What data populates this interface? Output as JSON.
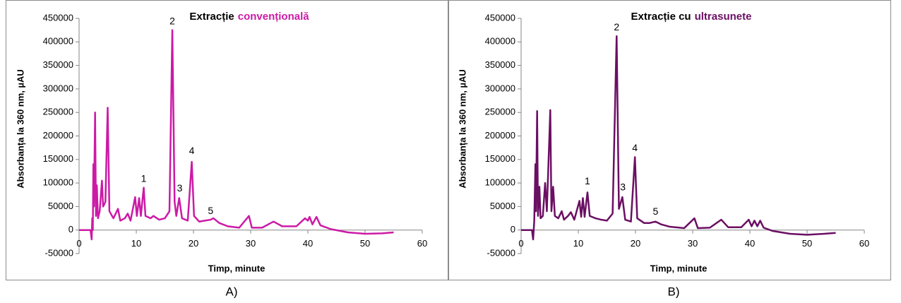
{
  "chart_data": [
    {
      "type": "line",
      "caption": "A)",
      "title_parts": [
        {
          "text": "Extracție",
          "color": "#000000"
        },
        {
          "text": "convențională",
          "color": "#cc1aa6"
        }
      ],
      "xlabel": "Timp, minute",
      "ylabel": "Absorbanța la 360 nm, µAU",
      "color": "#cc1aa6",
      "x": [
        0,
        2.0,
        2.2,
        2.3,
        2.4,
        2.5,
        2.6,
        2.8,
        2.95,
        3.1,
        3.3,
        3.6,
        4.0,
        4.2,
        4.6,
        5.0,
        5.3,
        6.0,
        6.8,
        7.2,
        8.0,
        8.5,
        9.0,
        9.8,
        10.1,
        10.5,
        10.8,
        11.3,
        11.6,
        12.5,
        13.0,
        14.0,
        15.0,
        15.8,
        16.3,
        16.7,
        17.0,
        17.5,
        18.0,
        19.0,
        19.7,
        20.1,
        21,
        22,
        23,
        23.5,
        24.5,
        26,
        28,
        29.7,
        30.2,
        32,
        34,
        35.5,
        38,
        39.5,
        40,
        40.3,
        40.8,
        41.5,
        42.2,
        44,
        47,
        50,
        53,
        55
      ],
      "values": [
        0,
        0,
        -20000,
        25000,
        0,
        140000,
        50000,
        250000,
        30000,
        95000,
        25000,
        40000,
        105000,
        50000,
        60000,
        260000,
        40000,
        25000,
        45000,
        20000,
        25000,
        35000,
        20000,
        70000,
        30000,
        68000,
        30000,
        90000,
        30000,
        25000,
        30000,
        22000,
        25000,
        40000,
        425000,
        60000,
        30000,
        68000,
        25000,
        20000,
        145000,
        30000,
        18000,
        20000,
        22000,
        25000,
        15000,
        8000,
        5000,
        30000,
        5000,
        5000,
        18000,
        8000,
        8000,
        25000,
        20000,
        28000,
        12000,
        28000,
        10000,
        2000,
        -5000,
        -8000,
        -7000,
        -5000
      ],
      "xlim": [
        0,
        60
      ],
      "xticks": [
        0,
        10,
        20,
        30,
        40,
        50,
        60
      ],
      "ylim": [
        -50000,
        450000
      ],
      "yticks": [
        -50000,
        0,
        50000,
        100000,
        150000,
        200000,
        250000,
        300000,
        350000,
        400000,
        450000
      ],
      "annotations": [
        {
          "text": "1",
          "x": 11.3,
          "y": 108000
        },
        {
          "text": "2",
          "x": 16.3,
          "y": 443000
        },
        {
          "text": "3",
          "x": 17.6,
          "y": 88000
        },
        {
          "text": "4",
          "x": 19.7,
          "y": 167000
        },
        {
          "text": "5",
          "x": 23,
          "y": 40000
        }
      ]
    },
    {
      "type": "line",
      "caption": "B)",
      "title_parts": [
        {
          "text": "Extracție cu",
          "color": "#000000"
        },
        {
          "text": "ultrasunete",
          "color": "#6b0f63"
        }
      ],
      "xlabel": "Timp, minute",
      "ylabel": "Absorbanța la 360 nm, µAU",
      "color": "#6b0f63",
      "x": [
        0,
        1.9,
        2.1,
        2.3,
        2.5,
        2.6,
        2.8,
        2.95,
        3.2,
        3.4,
        3.8,
        4.2,
        4.5,
        5.1,
        5.3,
        5.6,
        5.9,
        6.5,
        7.1,
        7.5,
        8.2,
        8.7,
        9.3,
        10.2,
        10.5,
        10.8,
        11.1,
        11.6,
        12.0,
        13.0,
        14.0,
        15.0,
        16.0,
        16.7,
        17.1,
        17.7,
        18.2,
        19.2,
        19.9,
        20.3,
        21.5,
        22.5,
        23.5,
        24.5,
        26,
        28.5,
        30.3,
        30.9,
        33,
        35,
        36.2,
        38.5,
        39.8,
        40.3,
        40.8,
        41.3,
        41.8,
        42.4,
        44,
        47,
        50,
        53,
        55
      ],
      "values": [
        0,
        0,
        -20000,
        20000,
        140000,
        40000,
        253000,
        30000,
        92000,
        25000,
        30000,
        100000,
        40000,
        255000,
        40000,
        92000,
        30000,
        25000,
        40000,
        22000,
        30000,
        38000,
        22000,
        62000,
        28000,
        68000,
        28000,
        80000,
        30000,
        25000,
        22000,
        20000,
        35000,
        412000,
        45000,
        70000,
        22000,
        18000,
        155000,
        25000,
        15000,
        15000,
        18000,
        12000,
        7000,
        4000,
        25000,
        4000,
        5000,
        22000,
        6000,
        6000,
        22000,
        8000,
        20000,
        8000,
        20000,
        5000,
        -2000,
        -8000,
        -10000,
        -8000,
        -6000
      ],
      "xlim": [
        0,
        60
      ],
      "xticks": [
        0,
        10,
        20,
        30,
        40,
        50,
        60
      ],
      "ylim": [
        -50000,
        450000
      ],
      "yticks": [
        -50000,
        0,
        50000,
        100000,
        150000,
        200000,
        250000,
        300000,
        350000,
        400000,
        450000
      ],
      "annotations": [
        {
          "text": "1",
          "x": 11.6,
          "y": 103000
        },
        {
          "text": "2",
          "x": 16.7,
          "y": 430000
        },
        {
          "text": "3",
          "x": 17.8,
          "y": 90000
        },
        {
          "text": "4",
          "x": 19.9,
          "y": 173000
        },
        {
          "text": "5",
          "x": 23.5,
          "y": 38000
        }
      ]
    }
  ]
}
